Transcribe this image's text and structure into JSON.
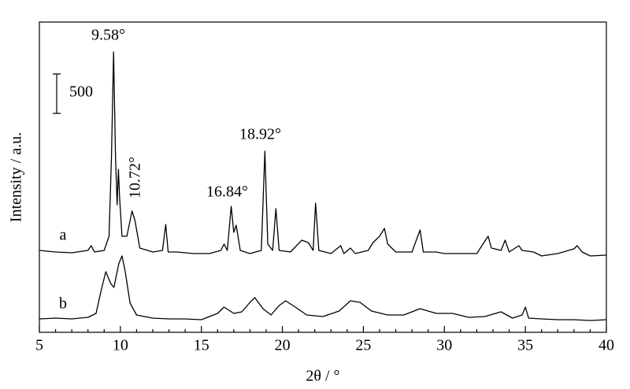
{
  "chart_data": {
    "type": "line",
    "x_label": "2θ / °",
    "y_label": "Intensity / a.u.",
    "xlim": [
      5,
      40
    ],
    "xticks": [
      5,
      10,
      15,
      20,
      25,
      30,
      35,
      40
    ],
    "xminorticks": [
      6,
      7,
      8,
      9,
      11,
      12,
      13,
      14,
      16,
      17,
      18,
      19,
      21,
      22,
      23,
      24,
      26,
      27,
      28,
      29,
      31,
      32,
      33,
      34,
      36,
      37,
      38,
      39
    ],
    "ylim": [
      0,
      3940
    ],
    "scale_bar": 500,
    "annotations": [
      "9.58°",
      "10.72°",
      "16.84°",
      "18.92°"
    ],
    "series": [
      {
        "name": "a",
        "color": "#000000",
        "x": [
          5,
          6,
          7,
          8,
          8.2,
          8.4,
          9,
          9.3,
          9.45,
          9.58,
          9.7,
          9.8,
          9.88,
          9.95,
          10.1,
          10.4,
          10.6,
          10.72,
          10.9,
          11.2,
          12,
          12.6,
          12.8,
          12.95,
          13.5,
          14.5,
          15.5,
          16.2,
          16.4,
          16.6,
          16.84,
          17.0,
          17.15,
          17.4,
          18,
          18.7,
          18.92,
          19.1,
          19.4,
          19.6,
          19.8,
          20.5,
          21.2,
          21.6,
          21.9,
          22.05,
          22.25,
          23,
          23.6,
          23.8,
          24.2,
          24.5,
          25.3,
          25.6,
          26,
          26.3,
          26.5,
          27,
          28,
          28.5,
          28.7,
          29.5,
          30,
          31,
          32,
          32.7,
          32.9,
          33.5,
          33.75,
          34,
          34.6,
          34.8,
          35.5,
          36,
          37,
          38,
          38.2,
          38.5,
          39,
          40
        ],
        "values": [
          1040,
          1020,
          1010,
          1040,
          1100,
          1020,
          1040,
          1220,
          2220,
          3560,
          2220,
          1620,
          2070,
          1720,
          1220,
          1220,
          1420,
          1540,
          1420,
          1070,
          1020,
          1040,
          1370,
          1020,
          1020,
          1000,
          1000,
          1040,
          1120,
          1040,
          1600,
          1270,
          1360,
          1040,
          1000,
          1040,
          2300,
          1120,
          1040,
          1570,
          1040,
          1020,
          1170,
          1140,
          1040,
          1640,
          1040,
          1000,
          1100,
          1000,
          1070,
          1000,
          1040,
          1140,
          1220,
          1320,
          1120,
          1020,
          1020,
          1300,
          1020,
          1020,
          1000,
          1000,
          1000,
          1220,
          1070,
          1040,
          1170,
          1020,
          1100,
          1040,
          1020,
          970,
          1000,
          1060,
          1100,
          1020,
          970,
          980
        ]
      },
      {
        "name": "b",
        "color": "#000000",
        "x": [
          5,
          6,
          7,
          8,
          8.5,
          8.8,
          9.1,
          9.4,
          9.6,
          9.9,
          10.1,
          10.3,
          10.6,
          11,
          12,
          13,
          14,
          15,
          16,
          16.4,
          17,
          17.5,
          18,
          18.3,
          18.8,
          19.3,
          19.8,
          20.2,
          20.8,
          21.5,
          22.5,
          23.5,
          24.2,
          24.8,
          25.5,
          26.5,
          27.5,
          28.5,
          29.5,
          30.5,
          31.5,
          32.5,
          33.5,
          34.2,
          34.8,
          35,
          35.2,
          36,
          37,
          38,
          39,
          40
        ],
        "values": [
          170,
          180,
          170,
          190,
          240,
          520,
          770,
          620,
          570,
          870,
          970,
          770,
          370,
          220,
          180,
          170,
          170,
          160,
          240,
          320,
          240,
          260,
          380,
          440,
          300,
          220,
          340,
          400,
          320,
          220,
          200,
          270,
          400,
          380,
          270,
          220,
          220,
          300,
          240,
          240,
          190,
          200,
          260,
          180,
          220,
          320,
          180,
          170,
          160,
          160,
          150,
          160
        ]
      }
    ]
  }
}
